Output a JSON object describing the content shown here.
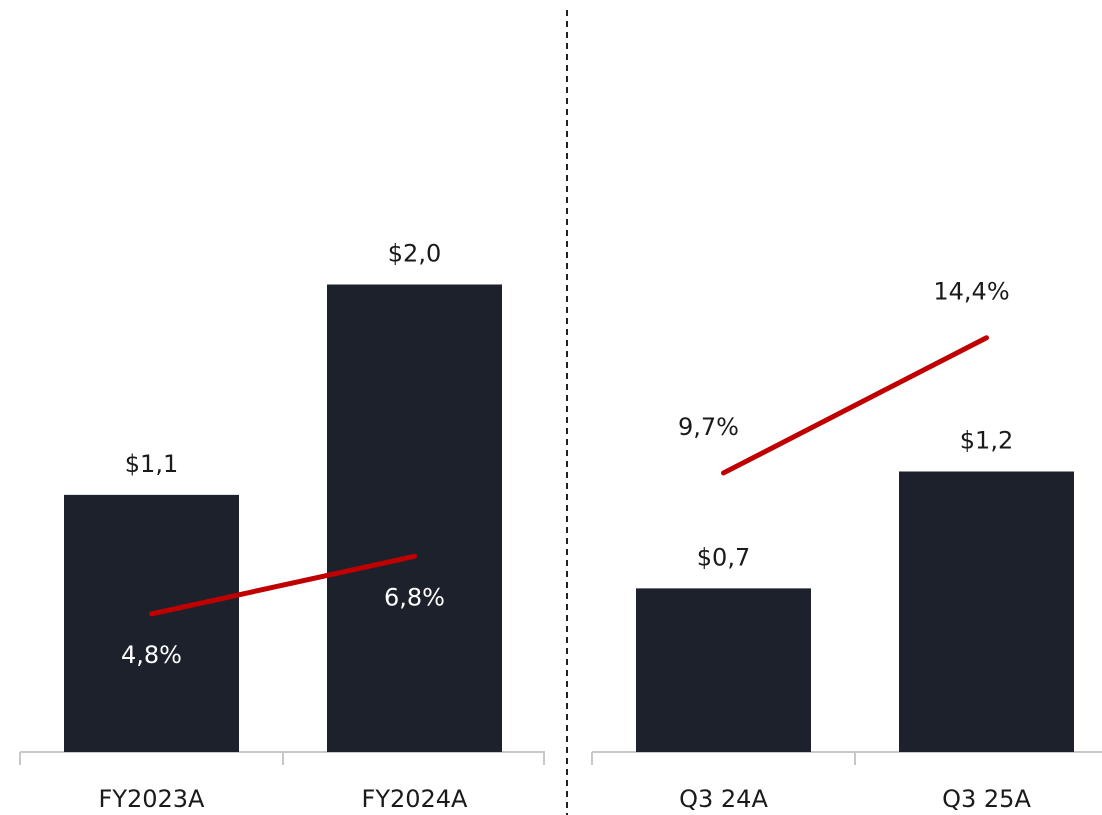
{
  "chart_data": [
    {
      "type": "combo",
      "categories": [
        "FY2023A",
        "FY2024A"
      ],
      "ylim": [
        0,
        3.2
      ],
      "y2lim": [
        0,
        26
      ],
      "series": [
        {
          "type": "bar",
          "color": "#1c212b",
          "values": [
            1.1,
            2.0
          ],
          "value_labels": [
            "$1,1",
            "$2,0"
          ]
        },
        {
          "type": "line",
          "axis": "y2",
          "color": "#c00000",
          "values": [
            4.8,
            6.8
          ],
          "value_labels": [
            "4,8%",
            "6,8%"
          ]
        }
      ]
    },
    {
      "type": "combo",
      "categories": [
        "Q3 24A",
        "Q3 25A"
      ],
      "ylim": [
        0,
        3.2
      ],
      "y2lim": [
        0,
        26
      ],
      "series": [
        {
          "type": "bar",
          "color": "#1c212b",
          "values": [
            0.7,
            1.2
          ],
          "value_labels": [
            "$0,7",
            "$1,2"
          ]
        },
        {
          "type": "line",
          "axis": "y2",
          "color": "#c00000",
          "values": [
            9.7,
            14.4
          ],
          "value_labels": [
            "9,7%",
            "14,4%"
          ]
        }
      ]
    }
  ]
}
